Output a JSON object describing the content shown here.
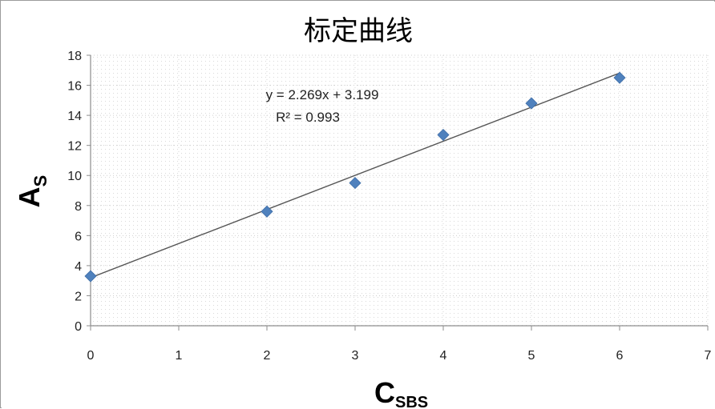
{
  "chart_data": {
    "type": "scatter",
    "title": "标定曲线",
    "xlabel": {
      "main": "C",
      "sub": "SBS"
    },
    "ylabel": {
      "main": "A",
      "sub": "S"
    },
    "xlim": [
      0,
      7
    ],
    "ylim": [
      0,
      18
    ],
    "x_ticks": [
      0,
      1,
      2,
      3,
      4,
      5,
      6,
      7
    ],
    "y_ticks": [
      0,
      2,
      4,
      6,
      8,
      10,
      12,
      14,
      16,
      18
    ],
    "grid": true,
    "series": [
      {
        "x": [
          0,
          2,
          3,
          4,
          5,
          6
        ],
        "y": [
          3.3,
          7.6,
          9.5,
          12.7,
          14.8,
          16.5
        ],
        "marker": "diamond",
        "color": "#4f81bd"
      }
    ],
    "trendline": {
      "slope": 2.269,
      "intercept": 3.199,
      "color": "#555555"
    },
    "equation_text": "y = 2.269x + 3.199",
    "r2_text": "R² = 0.993"
  }
}
